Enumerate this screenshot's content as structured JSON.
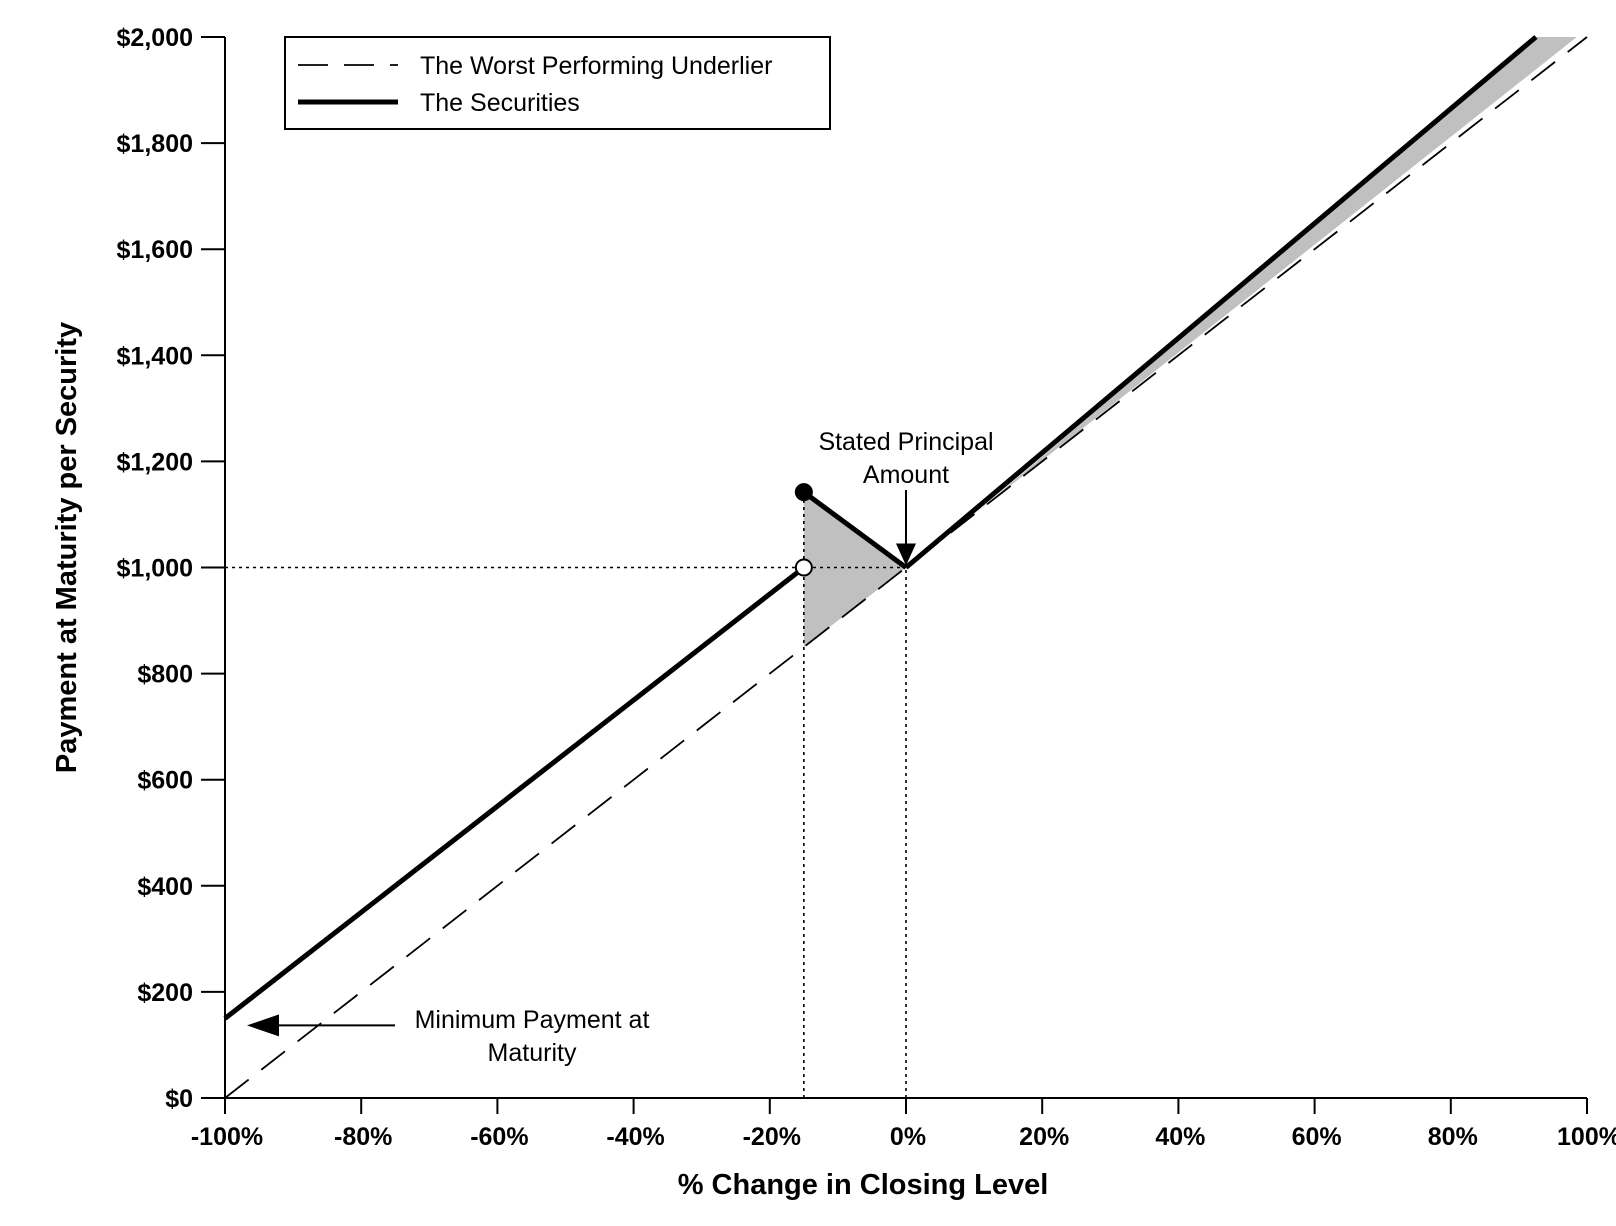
{
  "chart_data": {
    "type": "line",
    "title": "",
    "xlabel": "% Change in Closing Level",
    "ylabel": "Payment at Maturity per Security",
    "xlim": [
      -100,
      100
    ],
    "ylim": [
      0,
      2000
    ],
    "xticks": [
      -100,
      -80,
      -60,
      -40,
      -20,
      0,
      20,
      40,
      60,
      80,
      100
    ],
    "xtick_labels": [
      "-100%",
      "-80%",
      "-60%",
      "-40%",
      "-20%",
      "0%",
      "20%",
      "40%",
      "60%",
      "80%",
      "100%"
    ],
    "yticks": [
      0,
      200,
      400,
      600,
      800,
      1000,
      1200,
      1400,
      1600,
      1800,
      2000
    ],
    "ytick_labels": [
      "$0",
      "$200",
      "$400",
      "$600",
      "$800",
      "$1,000",
      "$1,200",
      "$1,400",
      "$1,600",
      "$1,800",
      "$2,000"
    ],
    "grid": false,
    "legend": {
      "position": "top-left",
      "entries": [
        {
          "label": "The Worst Performing Underlier",
          "style": "dashed"
        },
        {
          "label": "The Securities",
          "style": "solid-thick"
        }
      ]
    },
    "series": [
      {
        "name": "The Worst Performing Underlier",
        "style": "dashed",
        "x": [
          -100,
          100
        ],
        "y": [
          0,
          2000
        ]
      },
      {
        "name": "The Securities",
        "style": "solid",
        "segments": [
          {
            "x": [
              -100,
              -15
            ],
            "y": [
              150,
              1000
            ]
          },
          {
            "x": [
              -15,
              0
            ],
            "y": [
              1142,
              1000
            ]
          },
          {
            "x": [
              0,
              92.5
            ],
            "y": [
              1000,
              2000
            ]
          }
        ]
      }
    ],
    "markers": [
      {
        "x": -15,
        "y": 1000,
        "style": "open-circle"
      },
      {
        "x": -15,
        "y": 1142,
        "style": "filled-circle"
      }
    ],
    "shaded_regions": [
      {
        "points": [
          [
            -15,
            850
          ],
          [
            -15,
            1142
          ],
          [
            0,
            1000
          ]
        ]
      },
      {
        "points": [
          [
            10,
            1100
          ],
          [
            92.5,
            2000
          ],
          [
            98.5,
            2000
          ],
          [
            10,
            1100
          ]
        ]
      }
    ],
    "reference_lines": [
      {
        "type": "horizontal",
        "y": 1000,
        "x_from": -100,
        "x_to": 0,
        "style": "dotted"
      },
      {
        "type": "vertical",
        "x": -15,
        "y_from": 0,
        "y_to": 1142,
        "style": "dotted"
      },
      {
        "type": "vertical",
        "x": 0,
        "y_from": 0,
        "y_to": 1000,
        "style": "dotted"
      }
    ],
    "annotations": [
      {
        "lines": [
          "Stated Principal",
          "Amount"
        ],
        "points_to": {
          "x": 0,
          "y": 1000
        }
      },
      {
        "lines": [
          "Minimum Payment at",
          "Maturity"
        ],
        "points_to": {
          "x": -100,
          "y": 150
        }
      }
    ]
  },
  "colors": {
    "line": "#000000",
    "shade": "#c0c0c0",
    "background": "#ffffff"
  }
}
